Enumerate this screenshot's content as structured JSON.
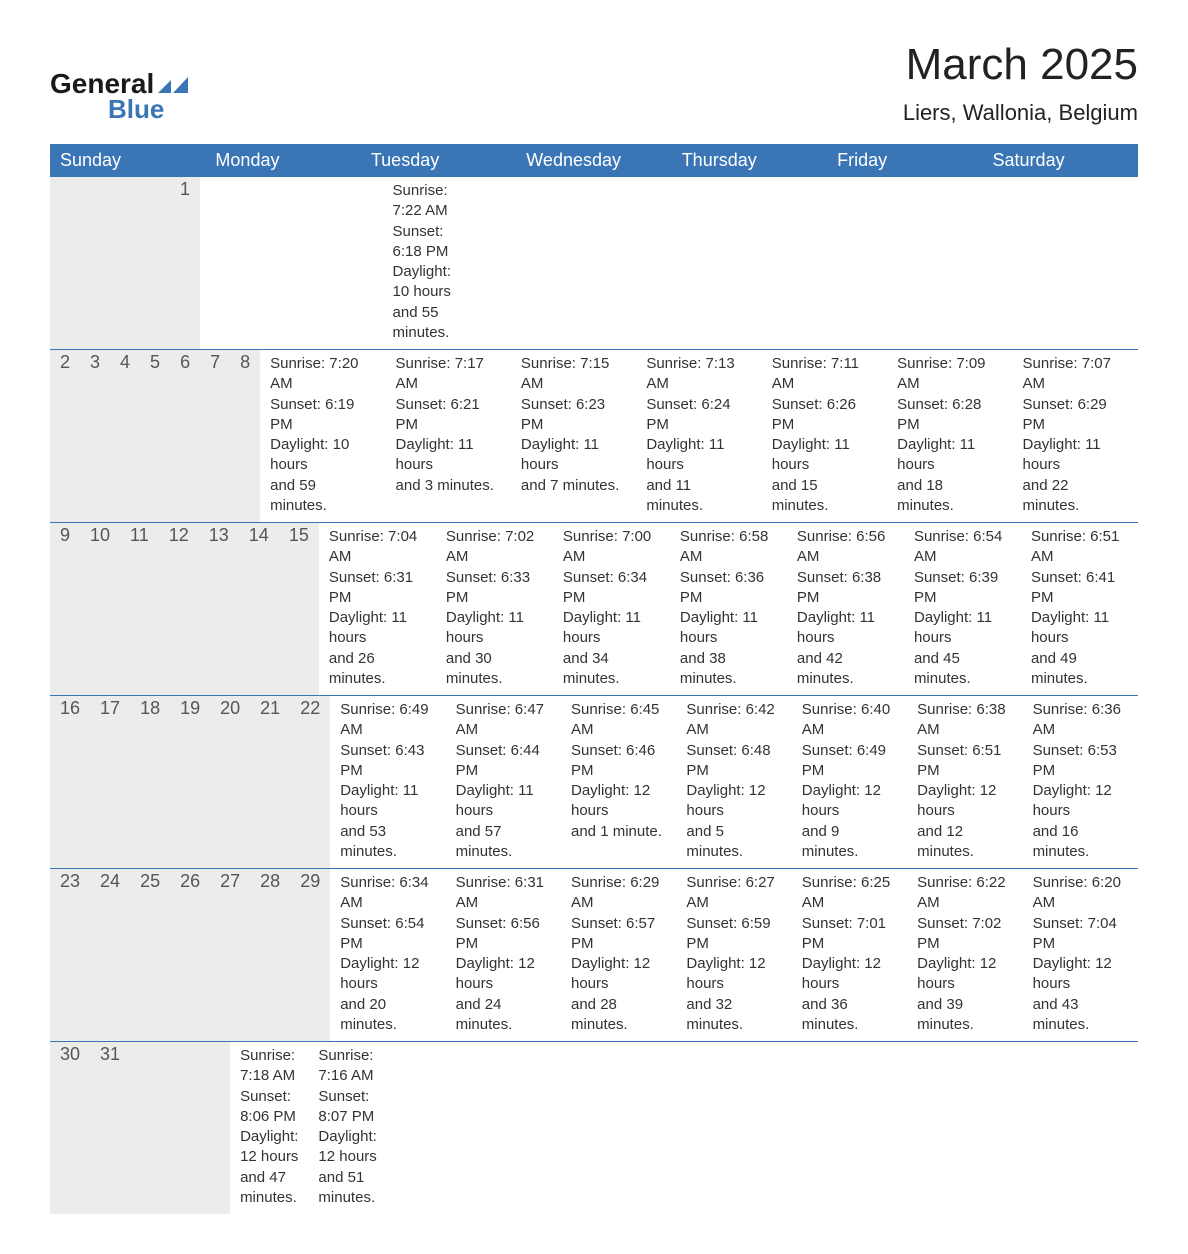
{
  "brand": {
    "word1": "General",
    "word2": "Blue",
    "tri_color": "#3a76b6"
  },
  "title": "March 2025",
  "subtitle": "Liers, Wallonia, Belgium",
  "header_bg": "#3a76b6",
  "header_fg": "#ffffff",
  "daynum_bg": "#ececec",
  "row_border": "#3a76b6",
  "text_color": "#333333",
  "day_headers": [
    "Sunday",
    "Monday",
    "Tuesday",
    "Wednesday",
    "Thursday",
    "Friday",
    "Saturday"
  ],
  "weeks": [
    [
      null,
      null,
      null,
      null,
      null,
      null,
      {
        "n": "1",
        "sr": "Sunrise: 7:22 AM",
        "ss": "Sunset: 6:18 PM",
        "d1": "Daylight: 10 hours",
        "d2": "and 55 minutes."
      }
    ],
    [
      {
        "n": "2",
        "sr": "Sunrise: 7:20 AM",
        "ss": "Sunset: 6:19 PM",
        "d1": "Daylight: 10 hours",
        "d2": "and 59 minutes."
      },
      {
        "n": "3",
        "sr": "Sunrise: 7:17 AM",
        "ss": "Sunset: 6:21 PM",
        "d1": "Daylight: 11 hours",
        "d2": "and 3 minutes."
      },
      {
        "n": "4",
        "sr": "Sunrise: 7:15 AM",
        "ss": "Sunset: 6:23 PM",
        "d1": "Daylight: 11 hours",
        "d2": "and 7 minutes."
      },
      {
        "n": "5",
        "sr": "Sunrise: 7:13 AM",
        "ss": "Sunset: 6:24 PM",
        "d1": "Daylight: 11 hours",
        "d2": "and 11 minutes."
      },
      {
        "n": "6",
        "sr": "Sunrise: 7:11 AM",
        "ss": "Sunset: 6:26 PM",
        "d1": "Daylight: 11 hours",
        "d2": "and 15 minutes."
      },
      {
        "n": "7",
        "sr": "Sunrise: 7:09 AM",
        "ss": "Sunset: 6:28 PM",
        "d1": "Daylight: 11 hours",
        "d2": "and 18 minutes."
      },
      {
        "n": "8",
        "sr": "Sunrise: 7:07 AM",
        "ss": "Sunset: 6:29 PM",
        "d1": "Daylight: 11 hours",
        "d2": "and 22 minutes."
      }
    ],
    [
      {
        "n": "9",
        "sr": "Sunrise: 7:04 AM",
        "ss": "Sunset: 6:31 PM",
        "d1": "Daylight: 11 hours",
        "d2": "and 26 minutes."
      },
      {
        "n": "10",
        "sr": "Sunrise: 7:02 AM",
        "ss": "Sunset: 6:33 PM",
        "d1": "Daylight: 11 hours",
        "d2": "and 30 minutes."
      },
      {
        "n": "11",
        "sr": "Sunrise: 7:00 AM",
        "ss": "Sunset: 6:34 PM",
        "d1": "Daylight: 11 hours",
        "d2": "and 34 minutes."
      },
      {
        "n": "12",
        "sr": "Sunrise: 6:58 AM",
        "ss": "Sunset: 6:36 PM",
        "d1": "Daylight: 11 hours",
        "d2": "and 38 minutes."
      },
      {
        "n": "13",
        "sr": "Sunrise: 6:56 AM",
        "ss": "Sunset: 6:38 PM",
        "d1": "Daylight: 11 hours",
        "d2": "and 42 minutes."
      },
      {
        "n": "14",
        "sr": "Sunrise: 6:54 AM",
        "ss": "Sunset: 6:39 PM",
        "d1": "Daylight: 11 hours",
        "d2": "and 45 minutes."
      },
      {
        "n": "15",
        "sr": "Sunrise: 6:51 AM",
        "ss": "Sunset: 6:41 PM",
        "d1": "Daylight: 11 hours",
        "d2": "and 49 minutes."
      }
    ],
    [
      {
        "n": "16",
        "sr": "Sunrise: 6:49 AM",
        "ss": "Sunset: 6:43 PM",
        "d1": "Daylight: 11 hours",
        "d2": "and 53 minutes."
      },
      {
        "n": "17",
        "sr": "Sunrise: 6:47 AM",
        "ss": "Sunset: 6:44 PM",
        "d1": "Daylight: 11 hours",
        "d2": "and 57 minutes."
      },
      {
        "n": "18",
        "sr": "Sunrise: 6:45 AM",
        "ss": "Sunset: 6:46 PM",
        "d1": "Daylight: 12 hours",
        "d2": "and 1 minute."
      },
      {
        "n": "19",
        "sr": "Sunrise: 6:42 AM",
        "ss": "Sunset: 6:48 PM",
        "d1": "Daylight: 12 hours",
        "d2": "and 5 minutes."
      },
      {
        "n": "20",
        "sr": "Sunrise: 6:40 AM",
        "ss": "Sunset: 6:49 PM",
        "d1": "Daylight: 12 hours",
        "d2": "and 9 minutes."
      },
      {
        "n": "21",
        "sr": "Sunrise: 6:38 AM",
        "ss": "Sunset: 6:51 PM",
        "d1": "Daylight: 12 hours",
        "d2": "and 12 minutes."
      },
      {
        "n": "22",
        "sr": "Sunrise: 6:36 AM",
        "ss": "Sunset: 6:53 PM",
        "d1": "Daylight: 12 hours",
        "d2": "and 16 minutes."
      }
    ],
    [
      {
        "n": "23",
        "sr": "Sunrise: 6:34 AM",
        "ss": "Sunset: 6:54 PM",
        "d1": "Daylight: 12 hours",
        "d2": "and 20 minutes."
      },
      {
        "n": "24",
        "sr": "Sunrise: 6:31 AM",
        "ss": "Sunset: 6:56 PM",
        "d1": "Daylight: 12 hours",
        "d2": "and 24 minutes."
      },
      {
        "n": "25",
        "sr": "Sunrise: 6:29 AM",
        "ss": "Sunset: 6:57 PM",
        "d1": "Daylight: 12 hours",
        "d2": "and 28 minutes."
      },
      {
        "n": "26",
        "sr": "Sunrise: 6:27 AM",
        "ss": "Sunset: 6:59 PM",
        "d1": "Daylight: 12 hours",
        "d2": "and 32 minutes."
      },
      {
        "n": "27",
        "sr": "Sunrise: 6:25 AM",
        "ss": "Sunset: 7:01 PM",
        "d1": "Daylight: 12 hours",
        "d2": "and 36 minutes."
      },
      {
        "n": "28",
        "sr": "Sunrise: 6:22 AM",
        "ss": "Sunset: 7:02 PM",
        "d1": "Daylight: 12 hours",
        "d2": "and 39 minutes."
      },
      {
        "n": "29",
        "sr": "Sunrise: 6:20 AM",
        "ss": "Sunset: 7:04 PM",
        "d1": "Daylight: 12 hours",
        "d2": "and 43 minutes."
      }
    ],
    [
      {
        "n": "30",
        "sr": "Sunrise: 7:18 AM",
        "ss": "Sunset: 8:06 PM",
        "d1": "Daylight: 12 hours",
        "d2": "and 47 minutes."
      },
      {
        "n": "31",
        "sr": "Sunrise: 7:16 AM",
        "ss": "Sunset: 8:07 PM",
        "d1": "Daylight: 12 hours",
        "d2": "and 51 minutes."
      },
      null,
      null,
      null,
      null,
      null
    ]
  ]
}
